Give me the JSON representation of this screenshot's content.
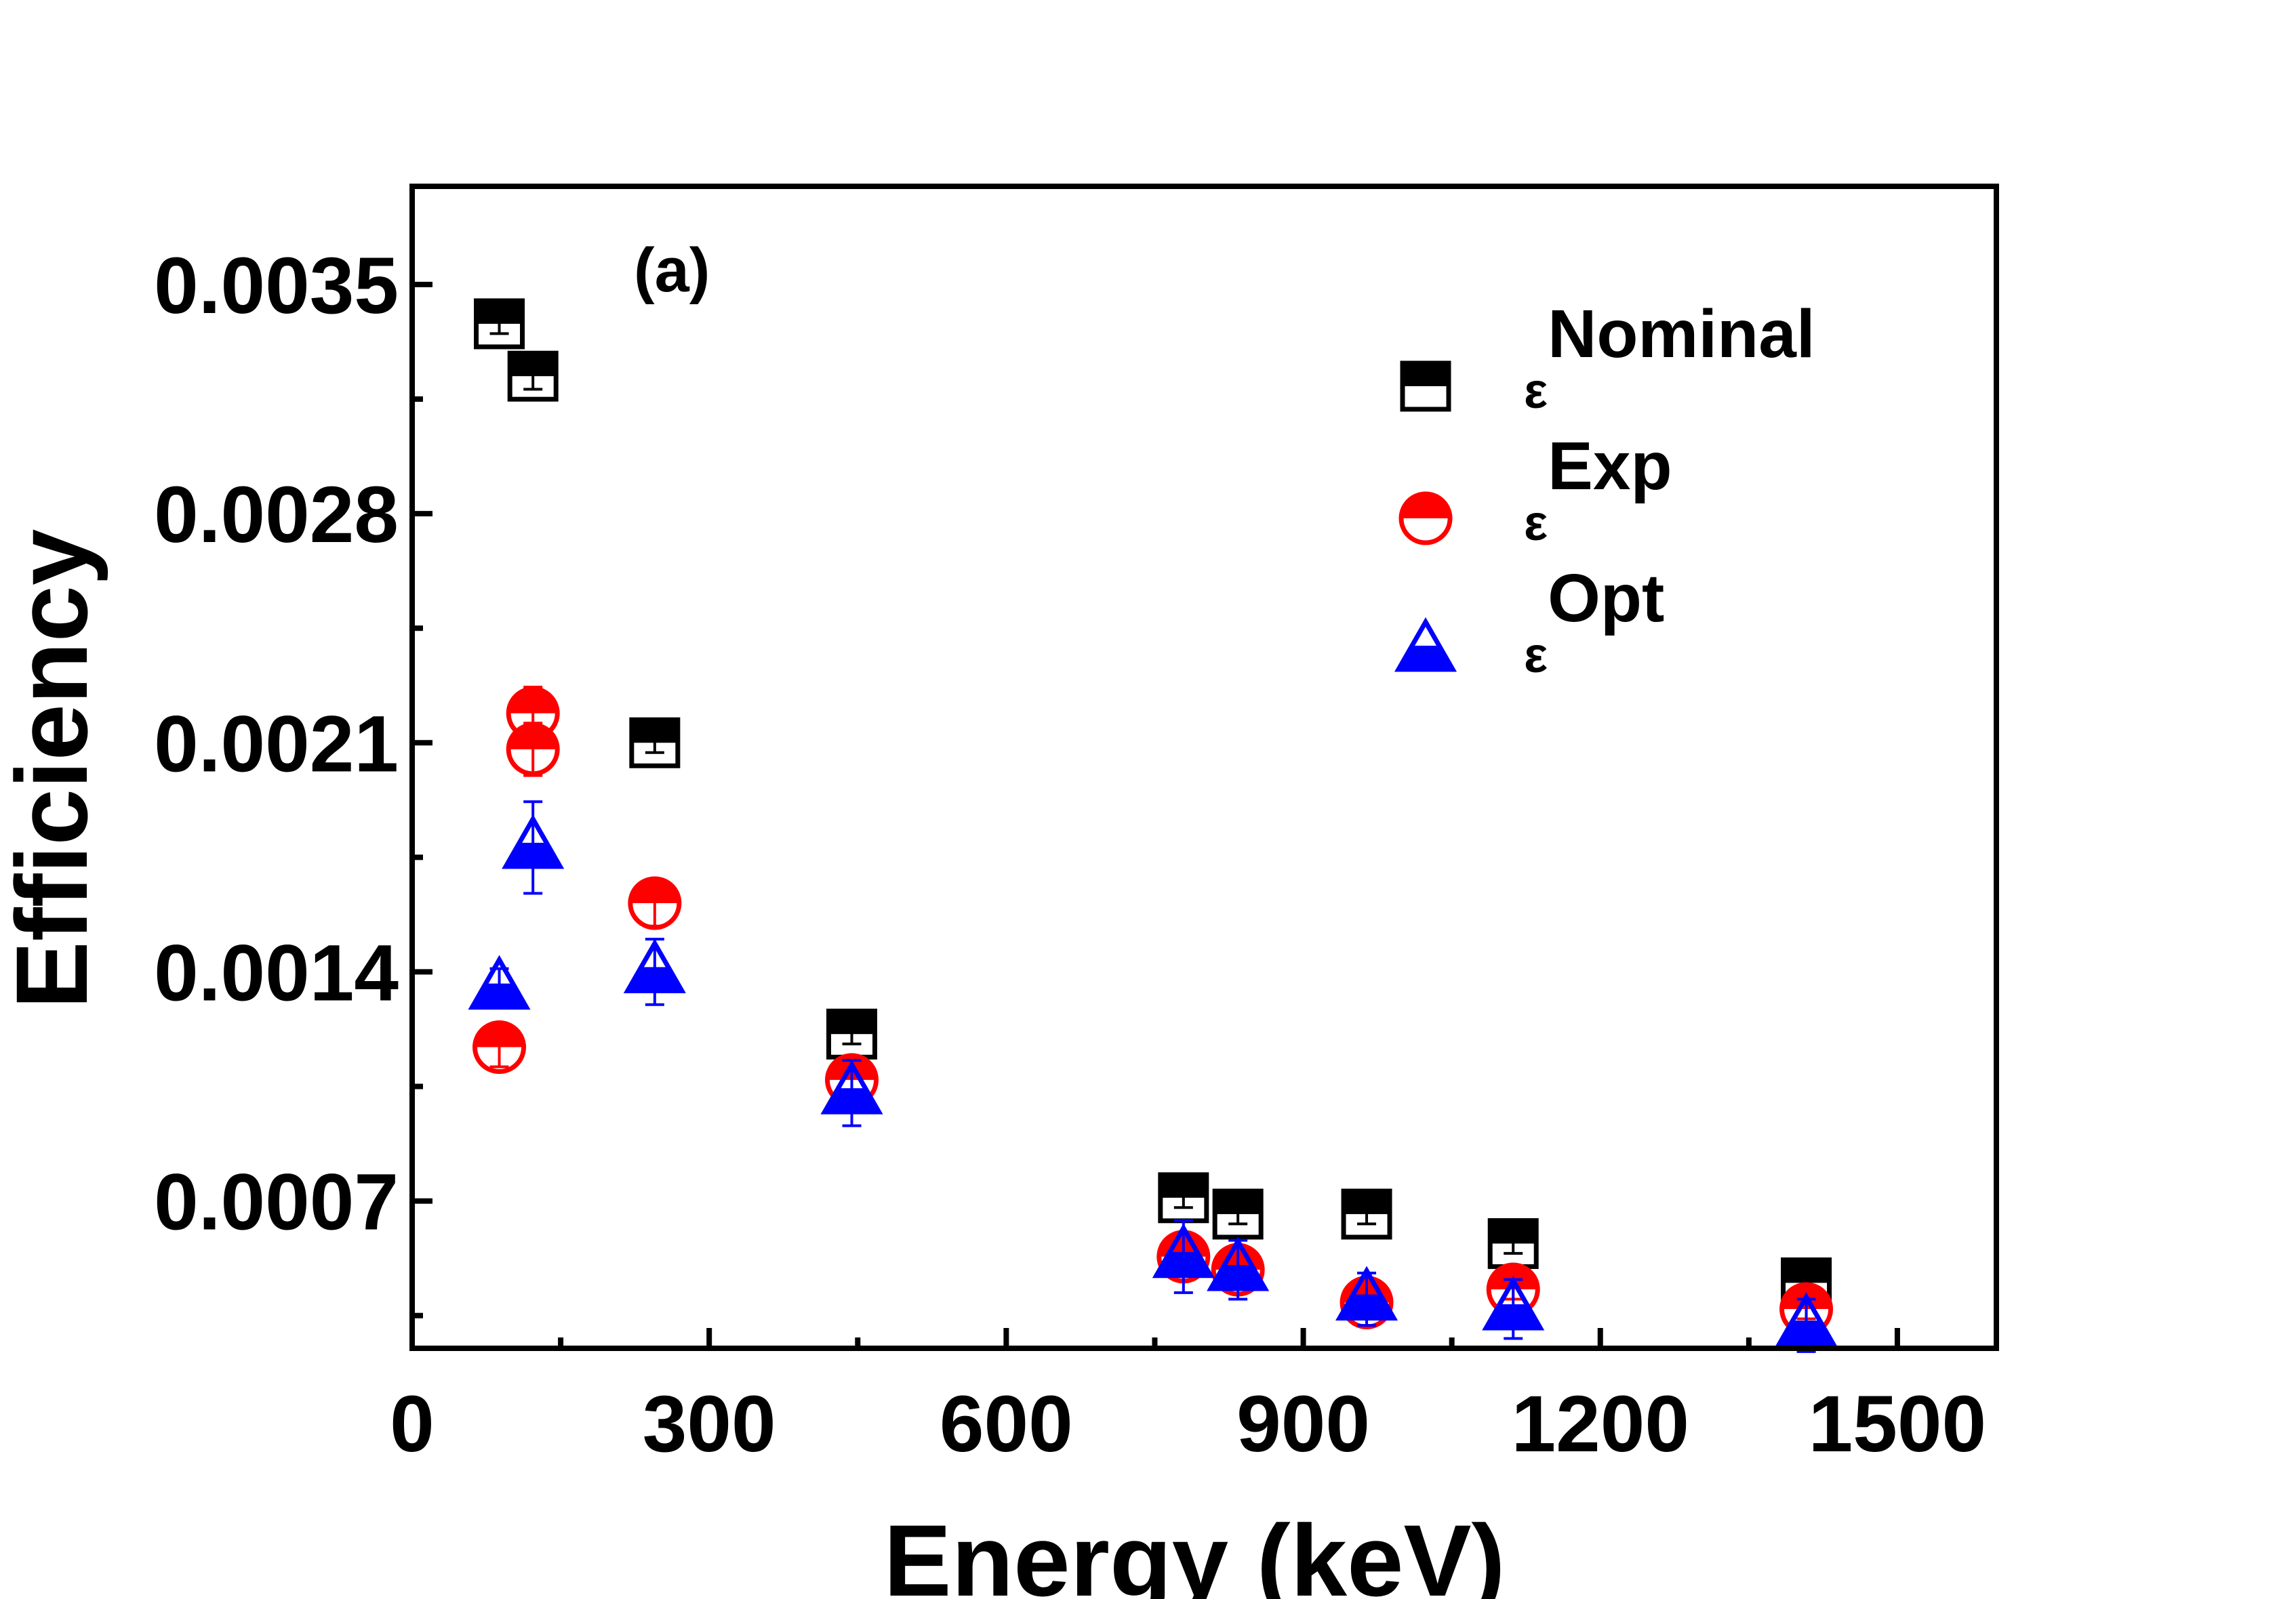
{
  "chart_data": {
    "type": "scatter",
    "panel_label": "(a)",
    "xlabel": "Energy (keV)",
    "ylabel": "Efficiency",
    "xlim": [
      0,
      1600
    ],
    "ylim": [
      0.00025,
      0.0038
    ],
    "xticks": [
      0,
      300,
      600,
      900,
      1200,
      1500
    ],
    "xtick_labels": [
      "0",
      "300",
      "600",
      "900",
      "1200",
      "1500"
    ],
    "xminor": [
      150,
      450,
      750,
      1050,
      1350
    ],
    "yticks": [
      0.0007,
      0.0014,
      0.0021,
      0.0028,
      0.0035
    ],
    "ytick_labels": [
      "0.0007",
      "0.0014",
      "0.0021",
      "0.0028",
      "0.0035"
    ],
    "yminor": [
      0.00035,
      0.00105,
      0.00175,
      0.00245,
      0.00315
    ],
    "grid": false,
    "legend_position": "top-right",
    "series": [
      {
        "name": "Nominal",
        "legend_base": "ε",
        "legend_sup": "Nominal",
        "marker": "half-square",
        "color": "#000000",
        "points": [
          {
            "x": 88,
            "y": 0.00338,
            "err": 3e-05
          },
          {
            "x": 122,
            "y": 0.00322,
            "err": 4e-05
          },
          {
            "x": 245,
            "y": 0.0021,
            "err": 3e-05
          },
          {
            "x": 444,
            "y": 0.00121,
            "err": 3e-05
          },
          {
            "x": 779,
            "y": 0.00071,
            "err": 3e-05
          },
          {
            "x": 834,
            "y": 0.00066,
            "err": 3e-05
          },
          {
            "x": 964,
            "y": 0.00066,
            "err": 3e-05
          },
          {
            "x": 1112,
            "y": 0.00057,
            "err": 3e-05
          },
          {
            "x": 1408,
            "y": 0.00045,
            "err": 3e-05
          }
        ]
      },
      {
        "name": "Exp",
        "legend_base": "ε",
        "legend_sup": "Exp",
        "marker": "half-circle",
        "color": "#ff0000",
        "points": [
          {
            "x": 88,
            "y": 0.00117,
            "err": 6e-05
          },
          {
            "x": 122,
            "y": 0.00219,
            "err": 8e-05
          },
          {
            "x": 122,
            "y": 0.00208,
            "err": 8e-05
          },
          {
            "x": 245,
            "y": 0.00161,
            "err": 7e-05
          },
          {
            "x": 444,
            "y": 0.00107,
            "err": 6e-05
          },
          {
            "x": 779,
            "y": 0.00053,
            "err": 4e-05
          },
          {
            "x": 834,
            "y": 0.00049,
            "err": 4e-05
          },
          {
            "x": 964,
            "y": 0.00039,
            "err": 3e-05
          },
          {
            "x": 1112,
            "y": 0.00043,
            "err": 3e-05
          },
          {
            "x": 1408,
            "y": 0.00037,
            "err": 3e-05
          }
        ]
      },
      {
        "name": "Opt",
        "legend_base": "ε",
        "legend_sup": "Opt",
        "marker": "half-triangle",
        "color": "#0000ff",
        "points": [
          {
            "x": 88,
            "y": 0.00135,
            "err": 6e-05
          },
          {
            "x": 122,
            "y": 0.00178,
            "err": 0.00014
          },
          {
            "x": 245,
            "y": 0.0014,
            "err": 0.0001
          },
          {
            "x": 444,
            "y": 0.00103,
            "err": 0.0001
          },
          {
            "x": 779,
            "y": 0.00053,
            "err": 0.00011
          },
          {
            "x": 834,
            "y": 0.00049,
            "err": 9e-05
          },
          {
            "x": 964,
            "y": 0.0004,
            "err": 8e-05
          },
          {
            "x": 1112,
            "y": 0.00037,
            "err": 9e-05
          },
          {
            "x": 1408,
            "y": 0.00032,
            "err": 8e-05
          }
        ]
      }
    ]
  }
}
